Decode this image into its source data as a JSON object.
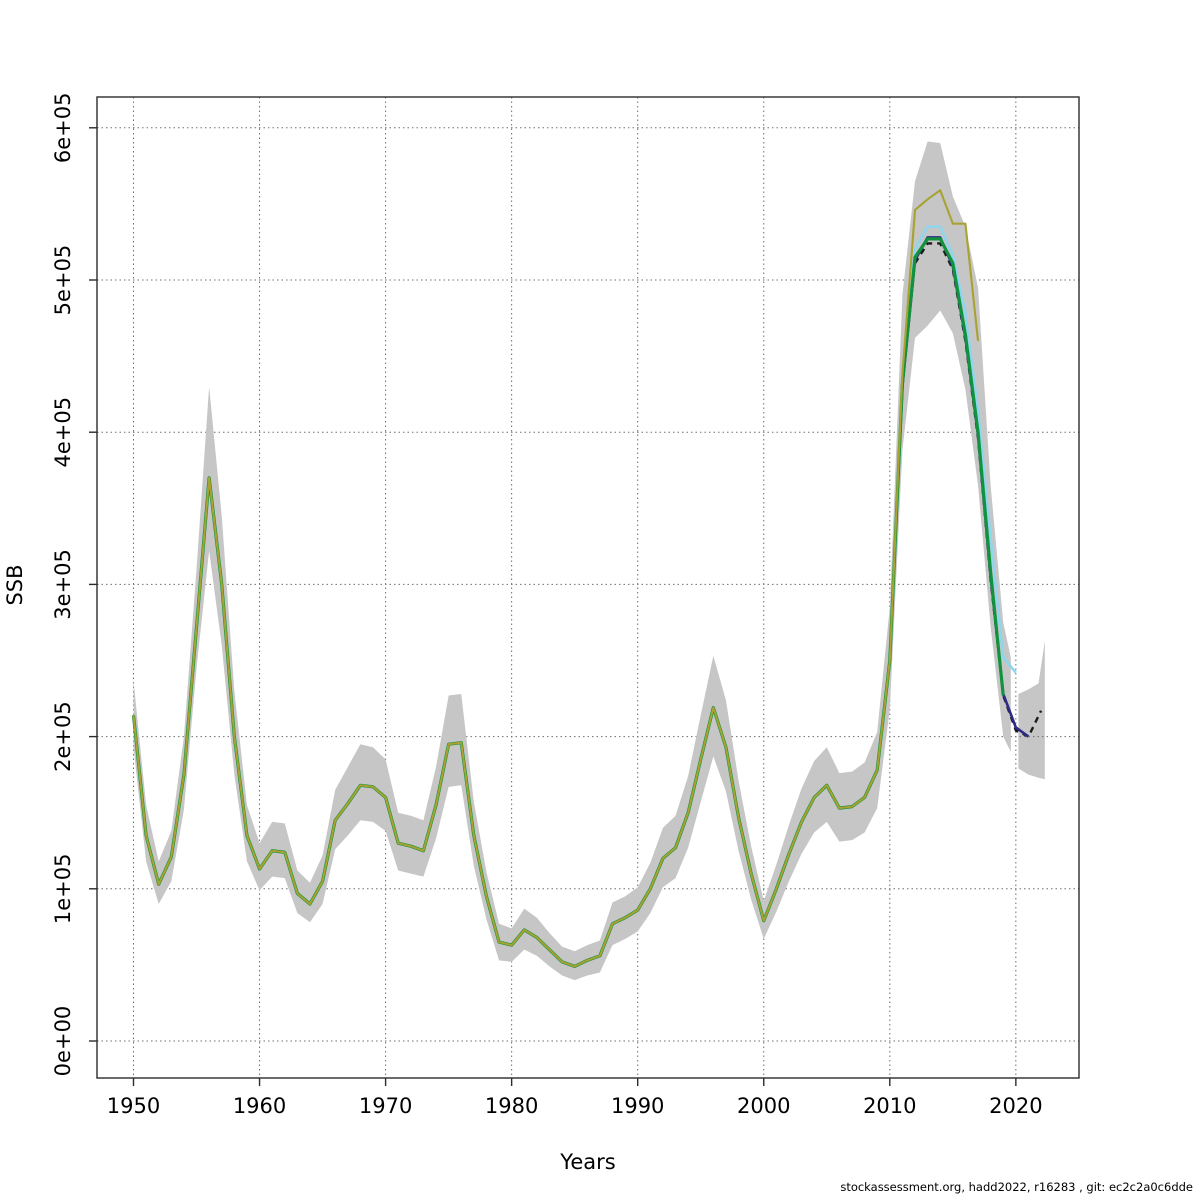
{
  "figure": {
    "xlabel": "Years",
    "ylabel": "SSB",
    "footer": "stockassessment.org, hadd2022, r16283 , git: ec2c2a0c6dde"
  },
  "chart_data": {
    "type": "line",
    "title": "",
    "xlabel": "Years",
    "ylabel": "SSB",
    "legend": "none",
    "grid": "dotted-grey-at-ticks",
    "xlim": [
      1947,
      2025
    ],
    "ylim_axis_units": [
      0,
      620000
    ],
    "x_ticks": [
      1950,
      1960,
      1970,
      1980,
      1990,
      2000,
      2010,
      2020
    ],
    "y_ticks": [
      {
        "value": 0,
        "label": "0e+00"
      },
      {
        "value": 100,
        "label": "1e+05"
      },
      {
        "value": 200,
        "label": "2e+05"
      },
      {
        "value": 300,
        "label": "3e+05"
      },
      {
        "value": 400,
        "label": "4e+05"
      },
      {
        "value": 500,
        "label": "5e+05"
      },
      {
        "value": 600,
        "label": "6e+05"
      }
    ],
    "values_scale_note": "all series/band values below are in thousands (multiply by 1000 for axis units)",
    "band_color": "#c6c6c6",
    "base_start_year": 1950,
    "base_values": [
      214,
      135,
      103,
      121,
      175,
      272,
      370,
      300,
      200,
      135,
      113,
      125,
      124,
      97,
      90,
      105,
      145,
      156,
      168,
      167,
      160,
      130,
      128,
      125,
      155,
      195,
      196,
      135,
      95,
      65,
      63,
      73,
      68,
      60,
      52,
      49,
      53,
      56,
      77,
      81,
      86,
      100,
      120,
      127,
      150,
      185,
      219,
      193,
      147,
      110,
      79,
      100,
      123,
      144,
      160,
      168,
      153,
      154,
      160,
      178,
      250
    ],
    "confidence_band": {
      "years": [
        1950,
        1951,
        1952,
        1953,
        1954,
        1955,
        1956,
        1957,
        1958,
        1959,
        1960,
        1961,
        1962,
        1963,
        1964,
        1965,
        1966,
        1967,
        1968,
        1969,
        1970,
        1971,
        1972,
        1973,
        1974,
        1975,
        1976,
        1977,
        1978,
        1979,
        1980,
        1981,
        1982,
        1983,
        1984,
        1985,
        1986,
        1987,
        1988,
        1989,
        1990,
        1991,
        1992,
        1993,
        1994,
        1995,
        1996,
        1997,
        1998,
        1999,
        2000,
        2001,
        2002,
        2003,
        2004,
        2005,
        2006,
        2007,
        2008,
        2009,
        2010,
        2011,
        2012,
        2013,
        2014,
        2015,
        2016,
        2017,
        2018,
        2019,
        2019.6
      ],
      "upper": [
        237,
        155,
        118,
        138,
        200,
        310,
        430,
        345,
        230,
        155,
        130,
        144,
        143,
        112,
        104,
        122,
        165,
        180,
        195,
        193,
        185,
        150,
        148,
        145,
        180,
        227,
        228,
        157,
        111,
        77,
        74,
        87,
        81,
        71,
        62,
        59,
        63,
        66,
        91,
        95,
        101,
        117,
        140,
        148,
        174,
        214,
        253,
        224,
        171,
        128,
        92,
        116,
        142,
        166,
        184,
        193,
        176,
        177,
        183,
        203,
        285,
        490,
        565,
        591,
        590,
        555,
        535,
        495,
        365,
        275,
        252
      ],
      "lower": [
        193,
        118,
        90,
        105,
        152,
        245,
        322,
        260,
        175,
        118,
        99,
        108,
        107,
        84,
        78,
        90,
        126,
        135,
        145,
        144,
        138,
        112,
        110,
        108,
        133,
        167,
        168,
        115,
        80,
        53,
        52,
        60,
        56,
        49,
        43,
        40,
        43,
        45,
        63,
        67,
        72,
        84,
        101,
        107,
        127,
        157,
        187,
        164,
        125,
        93,
        67,
        85,
        105,
        123,
        137,
        144,
        131,
        132,
        137,
        153,
        218,
        388,
        462,
        470,
        480,
        465,
        428,
        365,
        272,
        200,
        190
      ]
    },
    "forecast_band": {
      "years": [
        2020.2,
        2021,
        2021.8,
        2022.3
      ],
      "upper": [
        228,
        231,
        235,
        263
      ],
      "lower": [
        179,
        175,
        173,
        172
      ]
    },
    "series": [
      {
        "name": "forecast-dashed-black",
        "color": "#1b1b1b",
        "dash": "6 5",
        "width": 2.4,
        "use_base": false,
        "tail_start_year": 2012,
        "tail_values": [
          511,
          524,
          524,
          507,
          460,
          396,
          303,
          227,
          204,
          200,
          217
        ]
      },
      {
        "name": "run-navy",
        "color": "#2d2a86",
        "dash": null,
        "width": 2.6,
        "use_base": true,
        "tail_start_year": 2011,
        "tail_values": [
          430,
          513,
          528,
          528,
          509,
          462,
          398,
          305,
          228,
          206,
          200
        ]
      },
      {
        "name": "run-cyan",
        "color": "#8ed5ee",
        "dash": null,
        "width": 2.6,
        "use_base": true,
        "tail_start_year": 2011,
        "tail_values": [
          434,
          520,
          535,
          535,
          516,
          478,
          414,
          330,
          252,
          242
        ]
      },
      {
        "name": "run-green",
        "color": "#13923e",
        "dash": null,
        "width": 3.2,
        "use_base": true,
        "tail_start_year": 2011,
        "tail_values": [
          432,
          515,
          527,
          527,
          511,
          464,
          400,
          308,
          227
        ]
      },
      {
        "name": "run-olive",
        "color": "#a8a231",
        "dash": null,
        "width": 2.1,
        "use_base": true,
        "tail_start_year": 2011,
        "tail_values": [
          438,
          546,
          553,
          559,
          537,
          537,
          460
        ]
      }
    ]
  }
}
